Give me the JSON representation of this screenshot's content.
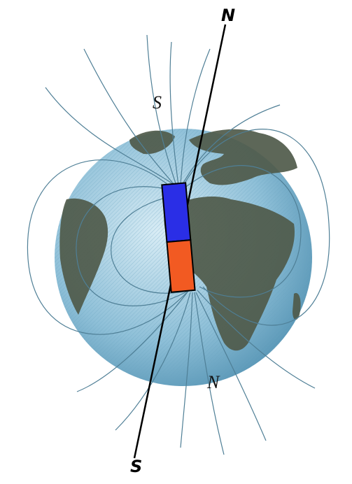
{
  "labels": {
    "geographic_north": "N",
    "geographic_south": "S",
    "magnetic_south": "S",
    "magnetic_north": "N"
  }
}
